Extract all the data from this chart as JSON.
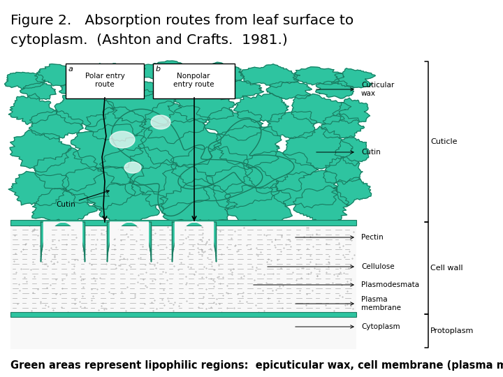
{
  "title_line1": "Figure 2.   Absorption routes from leaf surface to",
  "title_line2": "cytoplasm.  (Ashton and Crafts.  1981.)",
  "caption": "Green areas represent lipophilic regions:  epicuticular wax, cell membrane (plasma membrane).",
  "title_fontsize": 14.5,
  "caption_fontsize": 10.5,
  "bg_color": "#ffffff",
  "green_color": "#2ec4a0",
  "green_dark": "#1a7a60",
  "green_fill": "#3dd6ac"
}
